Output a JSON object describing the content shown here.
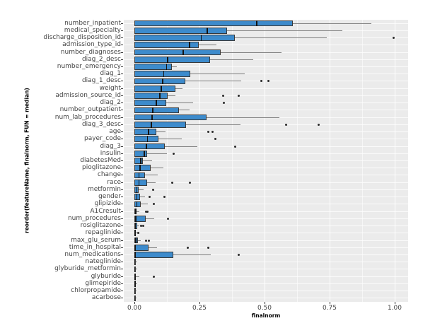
{
  "chart_data": {
    "type": "boxplot",
    "orientation": "horizontal",
    "title": "",
    "xlabel": "finalnorm",
    "ylabel": "reorder(featureName, finalnorm, FUN = median)",
    "xlim": [
      -0.04,
      1.05
    ],
    "x_ticks": [
      0,
      0.25,
      0.5,
      0.75,
      1.0
    ],
    "x_tick_labels": [
      "0.00",
      "0.25",
      "0.50",
      "0.75",
      "1.00"
    ],
    "x_minor_ticks": [
      0.125,
      0.375,
      0.625,
      0.875
    ],
    "grid": "major-and-minor-white-on-grey",
    "legend": "none",
    "colors": {
      "panel_background": "#ebebeb",
      "gridline": "#ffffff",
      "box_fill": "#3d8bcc",
      "box_border": "#3a3a3a",
      "median_line": "#141414",
      "whisker": "#7d7d7d",
      "outlier": "#2b2b2b",
      "tick_text": "#444444",
      "axis_title_text": "#000000"
    },
    "boxes": [
      {
        "label": "number_inpatient",
        "q1": 0,
        "median": 0.47,
        "q3": 0.61,
        "whisker_low": 0,
        "whisker_high": 0.91,
        "outliers": []
      },
      {
        "label": "medical_specialty",
        "q1": 0,
        "median": 0.28,
        "q3": 0.355,
        "whisker_low": 0,
        "whisker_high": 0.8,
        "outliers": []
      },
      {
        "label": "discharge_disposition_id",
        "q1": 0,
        "median": 0.257,
        "q3": 0.385,
        "whisker_low": 0,
        "whisker_high": 0.74,
        "outliers": [
          0.997
        ]
      },
      {
        "label": "admission_type_id",
        "q1": 0,
        "median": 0.212,
        "q3": 0.246,
        "whisker_low": 0,
        "whisker_high": 0.315,
        "outliers": []
      },
      {
        "label": "number_diagnoses",
        "q1": 0,
        "median": 0.188,
        "q3": 0.332,
        "whisker_low": 0,
        "whisker_high": 0.565,
        "outliers": []
      },
      {
        "label": "diag_2_desc",
        "q1": 0,
        "median": 0.127,
        "q3": 0.292,
        "whisker_low": 0,
        "whisker_high": 0.456,
        "outliers": []
      },
      {
        "label": "number_emergency",
        "q1": 0,
        "median": 0.124,
        "q3": 0.143,
        "whisker_low": 0,
        "whisker_high": 0.163,
        "outliers": []
      },
      {
        "label": "diag_1",
        "q1": 0,
        "median": 0.113,
        "q3": 0.215,
        "whisker_low": 0,
        "whisker_high": 0.423,
        "outliers": []
      },
      {
        "label": "diag_1_desc",
        "q1": 0,
        "median": 0.109,
        "q3": 0.195,
        "whisker_low": 0,
        "whisker_high": 0.41,
        "outliers": [
          0.487,
          0.514
        ]
      },
      {
        "label": "weight",
        "q1": 0,
        "median": 0.104,
        "q3": 0.157,
        "whisker_low": 0,
        "whisker_high": 0.184,
        "outliers": []
      },
      {
        "label": "admission_source_id",
        "q1": 0,
        "median": 0.098,
        "q3": 0.129,
        "whisker_low": 0,
        "whisker_high": 0.158,
        "outliers": [
          0.34,
          0.401
        ]
      },
      {
        "label": "diag_2",
        "q1": 0,
        "median": 0.084,
        "q3": 0.122,
        "whisker_low": 0,
        "whisker_high": 0.225,
        "outliers": [
          0.344
        ]
      },
      {
        "label": "number_outpatient",
        "q1": 0,
        "median": 0.071,
        "q3": 0.17,
        "whisker_low": 0,
        "whisker_high": 0.211,
        "outliers": []
      },
      {
        "label": "num_lab_procedures",
        "q1": 0,
        "median": 0.068,
        "q3": 0.278,
        "whisker_low": 0,
        "whisker_high": 0.557,
        "outliers": []
      },
      {
        "label": "diag_3_desc",
        "q1": 0,
        "median": 0.066,
        "q3": 0.199,
        "whisker_low": 0,
        "whisker_high": 0.408,
        "outliers": [
          0.582,
          0.708
        ]
      },
      {
        "label": "age",
        "q1": 0,
        "median": 0.054,
        "q3": 0.084,
        "whisker_low": 0,
        "whisker_high": 0.12,
        "outliers": [
          0.285,
          0.301
        ]
      },
      {
        "label": "payer_code",
        "q1": 0,
        "median": 0.05,
        "q3": 0.092,
        "whisker_low": 0,
        "whisker_high": 0.183,
        "outliers": [
          0.31
        ]
      },
      {
        "label": "diag_3",
        "q1": 0,
        "median": 0.047,
        "q3": 0.116,
        "whisker_low": 0,
        "whisker_high": 0.243,
        "outliers": [
          0.388
        ]
      },
      {
        "label": "insulin",
        "q1": 0,
        "median": 0.038,
        "q3": 0.048,
        "whisker_low": 0,
        "whisker_high": 0.124,
        "outliers": [
          0.152
        ]
      },
      {
        "label": "diabetesMed",
        "q1": 0,
        "median": 0.024,
        "q3": 0.032,
        "whisker_low": 0,
        "whisker_high": 0.068,
        "outliers": []
      },
      {
        "label": "pioglitazone",
        "q1": 0,
        "median": 0.021,
        "q3": 0.063,
        "whisker_low": 0,
        "whisker_high": 0.111,
        "outliers": []
      },
      {
        "label": "change",
        "q1": 0,
        "median": 0.018,
        "q3": 0.041,
        "whisker_low": 0,
        "whisker_high": 0.089,
        "outliers": []
      },
      {
        "label": "race",
        "q1": 0,
        "median": 0.018,
        "q3": 0.05,
        "whisker_low": 0,
        "whisker_high": 0.082,
        "outliers": [
          0.145,
          0.213
        ]
      },
      {
        "label": "metformin",
        "q1": 0,
        "median": 0.009,
        "q3": 0.016,
        "whisker_low": 0,
        "whisker_high": 0.036,
        "outliers": [
          0.071
        ]
      },
      {
        "label": "gender",
        "q1": 0,
        "median": 0.01,
        "q3": 0.021,
        "whisker_low": 0,
        "whisker_high": 0.041,
        "outliers": [
          0.059,
          0.115
        ]
      },
      {
        "label": "glipizide",
        "q1": 0,
        "median": 0.01,
        "q3": 0.025,
        "whisker_low": 0,
        "whisker_high": 0.052,
        "outliers": [
          0.075
        ]
      },
      {
        "label": "A1Cresult",
        "q1": 0,
        "median": 0.005,
        "q3": 0.009,
        "whisker_low": 0,
        "whisker_high": 0.02,
        "outliers": [
          0.044,
          0.05
        ]
      },
      {
        "label": "num_procedures",
        "q1": 0,
        "median": 0.005,
        "q3": 0.043,
        "whisker_low": 0,
        "whisker_high": 0.077,
        "outliers": [
          0.13
        ]
      },
      {
        "label": "rosiglitazone",
        "q1": 0,
        "median": 0.004,
        "q3": 0.012,
        "whisker_low": 0,
        "whisker_high": 0.02,
        "outliers": [
          0.027,
          0.033
        ]
      },
      {
        "label": "repaglinide",
        "q1": 0,
        "median": 0.002,
        "q3": 0.005,
        "whisker_low": 0,
        "whisker_high": 0.01,
        "outliers": [
          0.015
        ]
      },
      {
        "label": "max_glu_serum",
        "q1": 0,
        "median": 0.005,
        "q3": 0.014,
        "whisker_low": 0,
        "whisker_high": 0.024,
        "outliers": [
          0.045,
          0.057
        ]
      },
      {
        "label": "time_in_hospital",
        "q1": 0,
        "median": 0.003,
        "q3": 0.054,
        "whisker_low": 0,
        "whisker_high": 0.086,
        "outliers": [
          0.204,
          0.285
        ]
      },
      {
        "label": "num_medications",
        "q1": 0,
        "median": 0.002,
        "q3": 0.149,
        "whisker_low": 0,
        "whisker_high": 0.293,
        "outliers": [
          0.401
        ]
      },
      {
        "label": "nateglinide",
        "q1": 0,
        "median": 0.001,
        "q3": 0.004,
        "whisker_low": 0,
        "whisker_high": 0.01,
        "outliers": []
      },
      {
        "label": "glyburide_metformin",
        "q1": 0,
        "median": 0.001,
        "q3": 0.004,
        "whisker_low": 0,
        "whisker_high": 0.01,
        "outliers": []
      },
      {
        "label": "glyburide",
        "q1": 0,
        "median": 0.003,
        "q3": 0.006,
        "whisker_low": 0,
        "whisker_high": 0.018,
        "outliers": [
          0.074
        ]
      },
      {
        "label": "glimepiride",
        "q1": 0,
        "median": 0.002,
        "q3": 0.005,
        "whisker_low": 0,
        "whisker_high": 0.012,
        "outliers": []
      },
      {
        "label": "chlorpropamide",
        "q1": 0,
        "median": 0.001,
        "q3": 0.003,
        "whisker_low": 0,
        "whisker_high": 0.008,
        "outliers": []
      },
      {
        "label": "acarbose",
        "q1": 0,
        "median": 0.001,
        "q3": 0.003,
        "whisker_low": 0,
        "whisker_high": 0.008,
        "outliers": []
      }
    ]
  }
}
